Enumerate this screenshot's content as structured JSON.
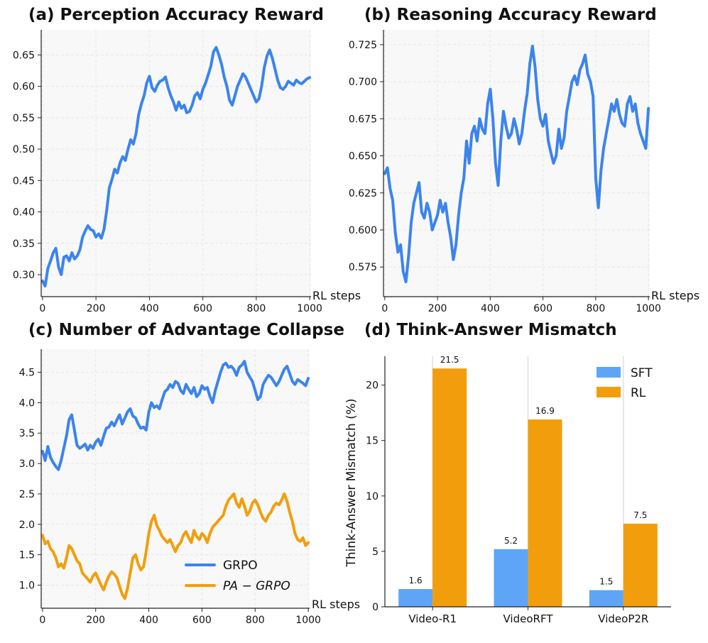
{
  "colors": {
    "grpo": "#3b84ee",
    "pa_grpo": "#f29e0c",
    "sft": "#5ea5f7",
    "rl": "#f29e0c",
    "plot_bg": "#f8f8f8",
    "grid": "#e6e6e6"
  },
  "chart_data": [
    {
      "id": "a",
      "type": "line",
      "title": "(a) Perception Accuracy Reward",
      "xlabel": "RL steps",
      "ylabel": "",
      "xlim": [
        -5,
        1005
      ],
      "ylim": [
        0.265,
        0.69
      ],
      "xticks": [
        0,
        200,
        400,
        600,
        800,
        1000
      ],
      "xtick_labels": [
        "0",
        "200",
        "400",
        "600",
        "800",
        "1000"
      ],
      "yticks": [
        0.3,
        0.35,
        0.4,
        0.45,
        0.5,
        0.55,
        0.6,
        0.65
      ],
      "ytick_labels": [
        "0.30",
        "0.35",
        "0.40",
        "0.45",
        "0.50",
        "0.55",
        "0.60",
        "0.65"
      ],
      "grid": true,
      "series": [
        {
          "name": "GRPO",
          "color_key": "grpo",
          "x": [
            0,
            10,
            20,
            30,
            40,
            50,
            60,
            70,
            80,
            90,
            100,
            110,
            120,
            130,
            140,
            150,
            160,
            170,
            180,
            190,
            200,
            210,
            220,
            230,
            240,
            250,
            260,
            270,
            280,
            290,
            300,
            310,
            320,
            330,
            340,
            350,
            360,
            370,
            380,
            390,
            400,
            410,
            420,
            430,
            440,
            450,
            460,
            470,
            480,
            490,
            500,
            510,
            520,
            530,
            540,
            550,
            560,
            570,
            580,
            590,
            600,
            610,
            620,
            630,
            640,
            650,
            660,
            670,
            680,
            690,
            700,
            710,
            720,
            730,
            740,
            750,
            760,
            770,
            780,
            790,
            800,
            810,
            820,
            830,
            840,
            850,
            860,
            870,
            880,
            890,
            900,
            910,
            920,
            930,
            940,
            950,
            960,
            970,
            980,
            990,
            1000
          ],
          "y": [
            0.29,
            0.282,
            0.31,
            0.322,
            0.335,
            0.342,
            0.312,
            0.3,
            0.328,
            0.33,
            0.322,
            0.335,
            0.325,
            0.33,
            0.34,
            0.36,
            0.37,
            0.378,
            0.372,
            0.37,
            0.36,
            0.365,
            0.358,
            0.372,
            0.402,
            0.438,
            0.452,
            0.468,
            0.462,
            0.478,
            0.488,
            0.482,
            0.5,
            0.515,
            0.508,
            0.525,
            0.555,
            0.572,
            0.585,
            0.605,
            0.616,
            0.598,
            0.592,
            0.602,
            0.608,
            0.61,
            0.615,
            0.598,
            0.585,
            0.575,
            0.562,
            0.575,
            0.565,
            0.57,
            0.558,
            0.56,
            0.57,
            0.585,
            0.59,
            0.58,
            0.595,
            0.605,
            0.618,
            0.632,
            0.655,
            0.662,
            0.65,
            0.635,
            0.615,
            0.6,
            0.578,
            0.57,
            0.585,
            0.6,
            0.61,
            0.62,
            0.615,
            0.605,
            0.595,
            0.585,
            0.575,
            0.58,
            0.6,
            0.63,
            0.648,
            0.658,
            0.645,
            0.628,
            0.61,
            0.598,
            0.595,
            0.6,
            0.608,
            0.605,
            0.602,
            0.61,
            0.606,
            0.604,
            0.608,
            0.612,
            0.614
          ]
        }
      ]
    },
    {
      "id": "b",
      "type": "line",
      "title": "(b) Reasoning Accuracy Reward",
      "xlabel": "RL steps",
      "ylabel": "",
      "xlim": [
        -5,
        1005
      ],
      "ylim": [
        0.555,
        0.735
      ],
      "xticks": [
        0,
        200,
        400,
        600,
        800,
        1000
      ],
      "xtick_labels": [
        "0",
        "200",
        "400",
        "600",
        "800",
        "1000"
      ],
      "yticks": [
        0.575,
        0.6,
        0.625,
        0.65,
        0.675,
        0.7,
        0.725
      ],
      "ytick_labels": [
        "0.575",
        "0.600",
        "0.625",
        "0.650",
        "0.675",
        "0.700",
        "0.725"
      ],
      "grid": true,
      "series": [
        {
          "name": "GRPO",
          "color_key": "grpo",
          "x": [
            0,
            10,
            20,
            30,
            40,
            50,
            60,
            70,
            80,
            90,
            100,
            110,
            120,
            130,
            140,
            150,
            160,
            170,
            180,
            190,
            200,
            210,
            220,
            230,
            240,
            250,
            260,
            270,
            280,
            290,
            300,
            310,
            320,
            330,
            340,
            350,
            360,
            370,
            380,
            390,
            400,
            410,
            420,
            430,
            440,
            450,
            460,
            470,
            480,
            490,
            500,
            510,
            520,
            530,
            540,
            550,
            560,
            570,
            580,
            590,
            600,
            610,
            620,
            630,
            640,
            650,
            660,
            670,
            680,
            690,
            700,
            710,
            720,
            730,
            740,
            750,
            760,
            770,
            780,
            790,
            800,
            810,
            820,
            830,
            840,
            850,
            860,
            870,
            880,
            890,
            900,
            910,
            920,
            930,
            940,
            950,
            960,
            970,
            980,
            990,
            1000
          ],
          "y": [
            0.638,
            0.642,
            0.628,
            0.62,
            0.598,
            0.585,
            0.59,
            0.572,
            0.565,
            0.582,
            0.605,
            0.618,
            0.625,
            0.632,
            0.612,
            0.608,
            0.618,
            0.612,
            0.6,
            0.605,
            0.61,
            0.62,
            0.612,
            0.618,
            0.605,
            0.595,
            0.58,
            0.59,
            0.61,
            0.625,
            0.635,
            0.66,
            0.645,
            0.665,
            0.67,
            0.66,
            0.675,
            0.668,
            0.665,
            0.685,
            0.695,
            0.675,
            0.645,
            0.63,
            0.66,
            0.68,
            0.67,
            0.662,
            0.665,
            0.675,
            0.668,
            0.658,
            0.665,
            0.68,
            0.692,
            0.712,
            0.724,
            0.71,
            0.688,
            0.675,
            0.67,
            0.678,
            0.66,
            0.652,
            0.645,
            0.65,
            0.668,
            0.655,
            0.662,
            0.68,
            0.69,
            0.7,
            0.704,
            0.698,
            0.708,
            0.712,
            0.718,
            0.705,
            0.7,
            0.69,
            0.635,
            0.615,
            0.64,
            0.655,
            0.665,
            0.675,
            0.685,
            0.68,
            0.688,
            0.678,
            0.672,
            0.67,
            0.685,
            0.69,
            0.68,
            0.685,
            0.672,
            0.665,
            0.66,
            0.655,
            0.682
          ]
        }
      ]
    },
    {
      "id": "c",
      "type": "line",
      "title": "(c) Number of Advantage Collapse",
      "xlabel": "RL steps",
      "ylabel": "",
      "xlim": [
        -5,
        1005
      ],
      "ylim": [
        0.62,
        4.88
      ],
      "xticks": [
        0,
        200,
        400,
        600,
        800,
        1000
      ],
      "xtick_labels": [
        "0",
        "200",
        "400",
        "600",
        "800",
        "1000"
      ],
      "yticks": [
        1.0,
        1.5,
        2.0,
        2.5,
        3.0,
        3.5,
        4.0,
        4.5
      ],
      "ytick_labels": [
        "1.0",
        "1.5",
        "2.0",
        "2.5",
        "3.0",
        "3.5",
        "4.0",
        "4.5"
      ],
      "grid": true,
      "legend": {
        "position": "lower-center",
        "entries": [
          "GRPO",
          "PA − GRPO"
        ]
      },
      "series": [
        {
          "name": "GRPO",
          "color_key": "grpo",
          "x": [
            0,
            10,
            20,
            30,
            40,
            50,
            60,
            70,
            80,
            90,
            100,
            110,
            120,
            130,
            140,
            150,
            160,
            170,
            180,
            190,
            200,
            210,
            220,
            230,
            240,
            250,
            260,
            270,
            280,
            290,
            300,
            310,
            320,
            330,
            340,
            350,
            360,
            370,
            380,
            390,
            400,
            410,
            420,
            430,
            440,
            450,
            460,
            470,
            480,
            490,
            500,
            510,
            520,
            530,
            540,
            550,
            560,
            570,
            580,
            590,
            600,
            610,
            620,
            630,
            640,
            650,
            660,
            670,
            680,
            690,
            700,
            710,
            720,
            730,
            740,
            750,
            760,
            770,
            780,
            790,
            800,
            810,
            820,
            830,
            840,
            850,
            860,
            870,
            880,
            890,
            900,
            910,
            920,
            930,
            940,
            950,
            960,
            970,
            980,
            990,
            1000
          ],
          "y": [
            3.2,
            3.05,
            3.28,
            3.1,
            3.02,
            2.95,
            2.9,
            3.05,
            3.25,
            3.45,
            3.72,
            3.8,
            3.55,
            3.3,
            3.25,
            3.28,
            3.32,
            3.22,
            3.3,
            3.25,
            3.35,
            3.4,
            3.3,
            3.45,
            3.58,
            3.6,
            3.68,
            3.62,
            3.72,
            3.8,
            3.65,
            3.75,
            3.85,
            3.9,
            3.78,
            3.75,
            3.65,
            3.58,
            3.6,
            3.55,
            3.85,
            4.0,
            3.92,
            3.95,
            3.9,
            4.05,
            4.18,
            4.22,
            4.3,
            4.25,
            4.35,
            4.32,
            4.2,
            4.15,
            4.3,
            4.22,
            4.15,
            4.25,
            4.1,
            4.15,
            4.28,
            4.22,
            4.25,
            4.1,
            4.0,
            4.2,
            4.35,
            4.5,
            4.62,
            4.65,
            4.58,
            4.6,
            4.55,
            4.45,
            4.58,
            4.62,
            4.68,
            4.5,
            4.42,
            4.35,
            4.2,
            4.05,
            4.1,
            4.3,
            4.38,
            4.45,
            4.42,
            4.35,
            4.28,
            4.35,
            4.45,
            4.55,
            4.6,
            4.48,
            4.35,
            4.3,
            4.38,
            4.35,
            4.32,
            4.28,
            4.4
          ]
        },
        {
          "name": "PA − GRPO",
          "color_key": "pa_grpo",
          "x": [
            0,
            10,
            20,
            30,
            40,
            50,
            60,
            70,
            80,
            90,
            100,
            110,
            120,
            130,
            140,
            150,
            160,
            170,
            180,
            190,
            200,
            210,
            220,
            230,
            240,
            250,
            260,
            270,
            280,
            290,
            300,
            310,
            320,
            330,
            340,
            350,
            360,
            370,
            380,
            390,
            400,
            410,
            420,
            430,
            440,
            450,
            460,
            470,
            480,
            490,
            500,
            510,
            520,
            530,
            540,
            550,
            560,
            570,
            580,
            590,
            600,
            610,
            620,
            630,
            640,
            650,
            660,
            670,
            680,
            690,
            700,
            710,
            720,
            730,
            740,
            750,
            760,
            770,
            780,
            790,
            800,
            810,
            820,
            830,
            840,
            850,
            860,
            870,
            880,
            890,
            900,
            910,
            920,
            930,
            940,
            950,
            960,
            970,
            980,
            990,
            1000
          ],
          "y": [
            1.82,
            1.68,
            1.72,
            1.6,
            1.55,
            1.45,
            1.3,
            1.35,
            1.28,
            1.45,
            1.65,
            1.6,
            1.5,
            1.4,
            1.35,
            1.2,
            1.15,
            1.1,
            1.05,
            1.15,
            1.2,
            1.1,
            1.0,
            0.92,
            1.05,
            1.15,
            1.22,
            1.18,
            1.12,
            0.98,
            0.85,
            0.78,
            0.95,
            1.2,
            1.45,
            1.5,
            1.35,
            1.25,
            1.3,
            1.55,
            1.85,
            2.05,
            2.15,
            1.98,
            1.9,
            1.8,
            1.75,
            1.7,
            1.75,
            1.65,
            1.55,
            1.65,
            1.7,
            1.82,
            1.88,
            1.78,
            1.7,
            1.9,
            1.8,
            1.75,
            1.85,
            1.8,
            1.7,
            1.85,
            1.95,
            2.0,
            2.05,
            2.1,
            2.15,
            2.3,
            2.4,
            2.45,
            2.5,
            2.35,
            2.28,
            2.42,
            2.3,
            2.15,
            2.22,
            2.35,
            2.4,
            2.32,
            2.2,
            2.1,
            2.05,
            2.15,
            2.2,
            2.3,
            2.35,
            2.32,
            2.4,
            2.5,
            2.38,
            2.2,
            2.05,
            1.85,
            1.75,
            1.72,
            1.78,
            1.65,
            1.7
          ]
        }
      ]
    },
    {
      "id": "d",
      "type": "bar",
      "title": "(d) Think-Answer Mismatch",
      "xlabel": "",
      "ylabel": "Think-Answer Mismatch (%)",
      "ylim": [
        0,
        22.6
      ],
      "yticks": [
        0,
        5,
        10,
        15,
        20
      ],
      "ytick_labels": [
        "0",
        "5",
        "10",
        "15",
        "20"
      ],
      "categories": [
        "Video-R1",
        "VideoRFT",
        "VideoP2R"
      ],
      "grid": false,
      "legend": {
        "position": "top-right",
        "entries": [
          "SFT",
          "RL"
        ]
      },
      "series": [
        {
          "name": "SFT",
          "color_key": "sft",
          "values": [
            1.6,
            5.2,
            1.5
          ],
          "labels": [
            "1.6",
            "5.2",
            "1.5"
          ]
        },
        {
          "name": "RL",
          "color_key": "rl",
          "values": [
            21.5,
            16.9,
            7.5
          ],
          "labels": [
            "21.5",
            "16.9",
            "7.5"
          ]
        }
      ]
    }
  ]
}
